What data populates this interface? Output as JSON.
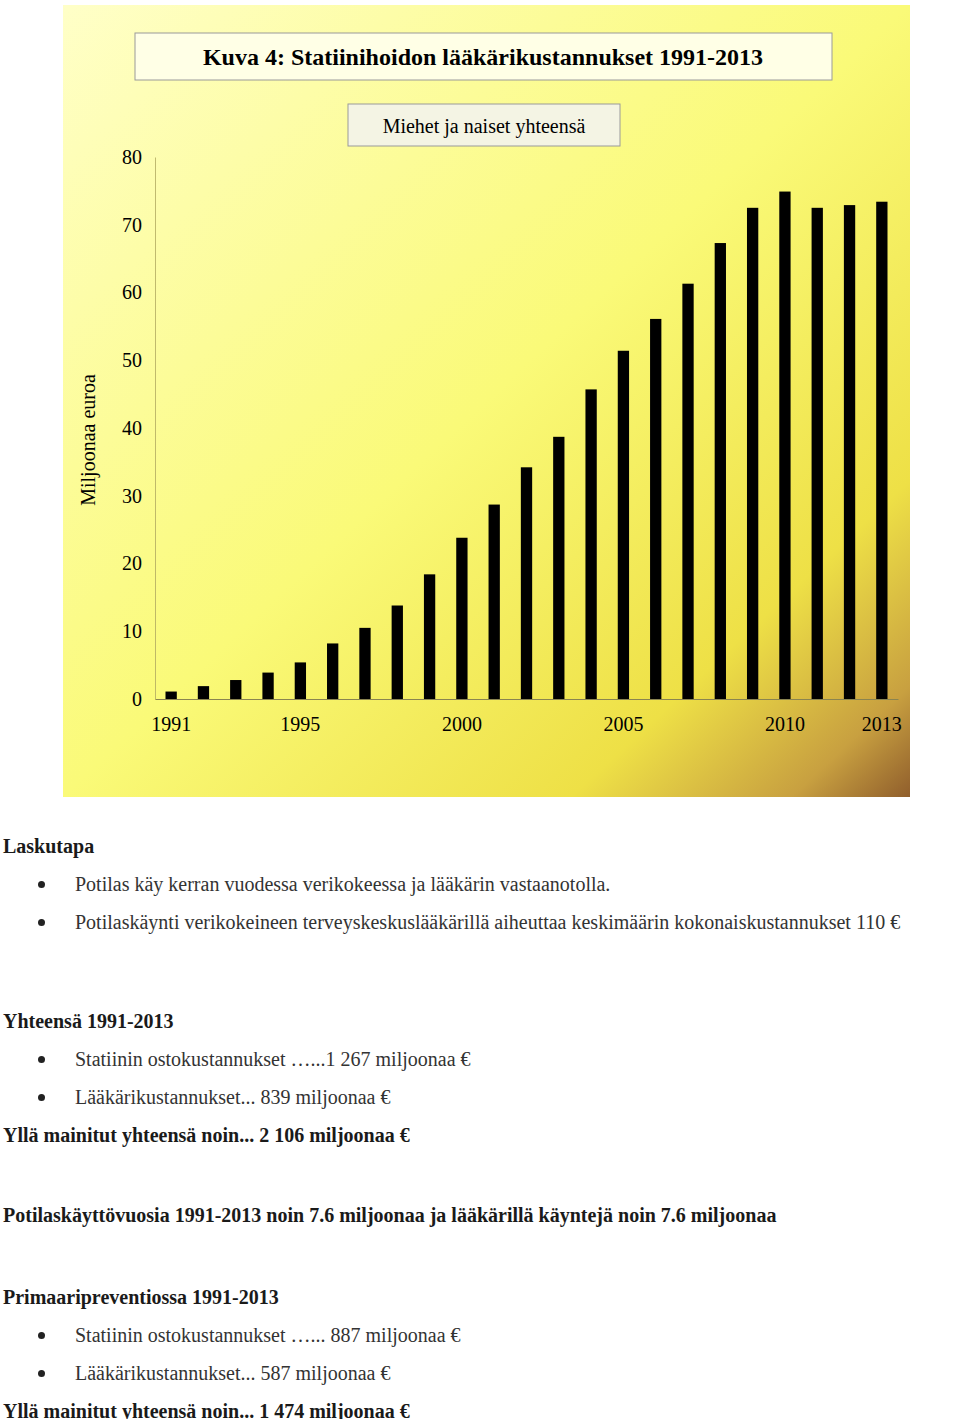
{
  "chart_data": {
    "type": "bar",
    "title": "Kuva 4: Statiinihoidon lääkärikustannukset 1991-2013",
    "subtitle": "Miehet ja naiset yhteensä",
    "y_label": "Miljoonaa euroa",
    "categories": [
      "1991",
      null,
      null,
      null,
      "1995",
      null,
      null,
      null,
      null,
      "2000",
      null,
      null,
      null,
      null,
      "2005",
      null,
      null,
      null,
      null,
      "2010",
      null,
      null,
      "2013"
    ],
    "values": [
      1.1,
      1.9,
      2.8,
      3.9,
      5.4,
      8.2,
      10.5,
      13.8,
      18.4,
      23.8,
      28.7,
      34.2,
      38.7,
      45.7,
      51.4,
      56.1,
      61.3,
      67.3,
      72.5,
      74.9,
      72.5,
      72.9,
      73.4
    ],
    "color": "#000000",
    "ylim": [
      0,
      80
    ],
    "yticks": [
      0,
      10,
      20,
      30,
      40,
      50,
      60,
      70,
      80
    ],
    "grid": false
  },
  "document": {
    "sections": [
      {
        "heading": "Laskutapa",
        "bullets": [
          "Potilas käy kerran vuodessa verikokeessa ja lääkärin vastaanotolla.",
          "Potilaskäynti verikokeineen terveyskeskuslääkärillä aiheuttaa keskimäärin kokonaiskustannukset 110 €"
        ]
      },
      {
        "heading": "Yhteensä 1991-2013",
        "bullets": [
          "Statiinin ostokustannukset …...1 267 miljoonaa €",
          "Lääkärikustannukset... 839 miljoonaa €"
        ],
        "total": "Yllä mainitut yhteensä noin... 2 106 miljoonaa €"
      },
      {
        "heading": "Potilaskäyttövuosia 1991-2013 noin 7.6 miljoonaa ja lääkärillä käyntejä noin 7.6 miljoonaa"
      },
      {
        "heading": "Primaaripreventiossa 1991-2013",
        "bullets": [
          "Statiinin ostokustannukset …... 887 miljoonaa €",
          "Lääkärikustannukset... 587 miljoonaa €"
        ],
        "total": "Yllä mainitut yhteensä noin... 1 474 miljoonaa €"
      }
    ]
  }
}
